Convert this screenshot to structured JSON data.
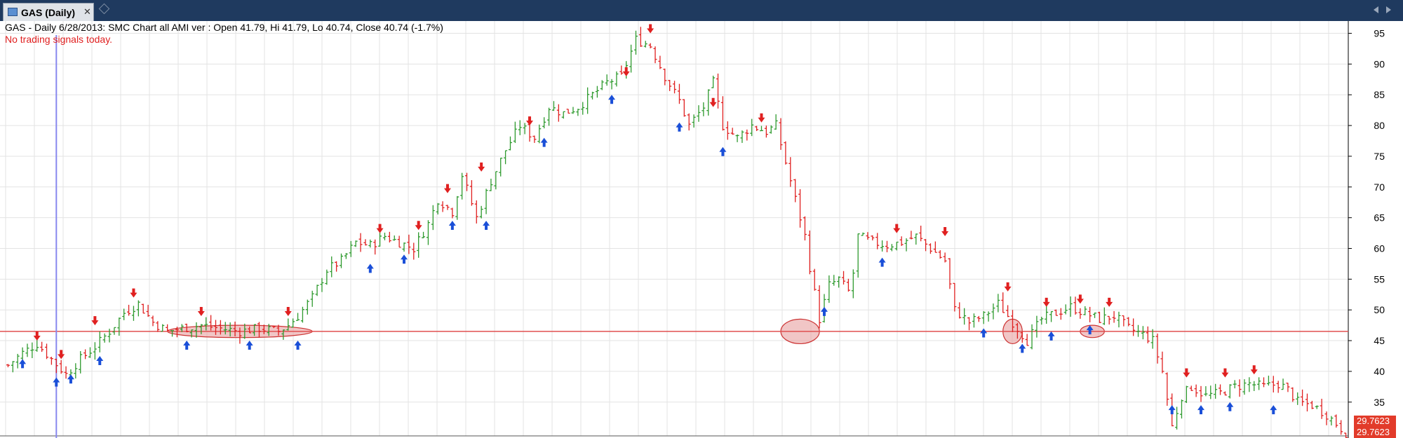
{
  "window": {
    "tab_label": "GAS (Daily)",
    "tab_close": "✕"
  },
  "header": {
    "info": "GAS - Daily 6/28/2013: SMC Chart all AMI ver : Open 41.79, Hi 41.79, Lo 40.74, Close 40.74 (-1.7%)",
    "signal_text": "No trading signals today."
  },
  "price_tags": [
    "29.7623",
    "29.7623"
  ],
  "chart_data": {
    "type": "bar",
    "style": "ohlc price bars, green up / red down",
    "y_axis_ticks": [
      35,
      40,
      45,
      50,
      55,
      60,
      65,
      70,
      75,
      80,
      85,
      90,
      95
    ],
    "ylim": [
      29.5,
      97
    ],
    "grid": true,
    "horizontal_level": 46.5,
    "last_price": 29.76,
    "colors": {
      "up_bar": "#2e9a2e",
      "down_bar": "#e02020",
      "buy_arrow": "#1a4fd8",
      "sell_arrow": "#e02020",
      "level_line": "#e05050",
      "cursor_line": "#8888ee",
      "ellipse_fill": "#e8a0a0"
    },
    "price_path": [
      [
        0,
        41
      ],
      [
        3,
        43
      ],
      [
        6,
        44.5
      ],
      [
        9,
        42
      ],
      [
        12,
        39.5
      ],
      [
        15,
        42
      ],
      [
        18,
        44
      ],
      [
        21,
        46.5
      ],
      [
        24,
        49.5
      ],
      [
        27,
        51
      ],
      [
        30,
        48
      ],
      [
        33,
        46.5
      ],
      [
        36,
        47
      ],
      [
        40,
        47.5
      ],
      [
        44,
        47
      ],
      [
        48,
        46.5
      ],
      [
        52,
        47
      ],
      [
        56,
        46.5
      ],
      [
        58,
        47.5
      ],
      [
        60,
        49
      ],
      [
        63,
        52
      ],
      [
        66,
        56.5
      ],
      [
        69,
        58
      ],
      [
        72,
        61
      ],
      [
        75,
        60.5
      ],
      [
        78,
        62
      ],
      [
        81,
        61
      ],
      [
        84,
        60
      ],
      [
        87,
        64
      ],
      [
        89,
        68
      ],
      [
        92,
        66
      ],
      [
        94,
        72
      ],
      [
        97,
        65
      ],
      [
        100,
        71
      ],
      [
        103,
        76
      ],
      [
        106,
        80
      ],
      [
        109,
        78
      ],
      [
        112,
        83
      ],
      [
        115,
        82
      ],
      [
        118,
        83
      ],
      [
        121,
        85
      ],
      [
        124,
        87
      ],
      [
        127,
        88
      ],
      [
        130,
        94
      ],
      [
        133,
        93
      ],
      [
        136,
        88
      ],
      [
        139,
        84
      ],
      [
        141,
        80
      ],
      [
        144,
        83
      ],
      [
        146,
        87
      ],
      [
        148,
        80
      ],
      [
        151,
        78
      ],
      [
        154,
        80
      ],
      [
        157,
        79
      ],
      [
        159,
        80
      ],
      [
        161,
        74
      ],
      [
        163,
        68
      ],
      [
        165,
        62
      ],
      [
        166,
        57
      ],
      [
        168,
        48.5
      ],
      [
        170,
        54
      ],
      [
        172,
        55
      ],
      [
        174,
        53
      ],
      [
        175,
        56
      ],
      [
        176,
        62
      ],
      [
        179,
        61
      ],
      [
        182,
        60.5
      ],
      [
        185,
        61
      ],
      [
        188,
        62
      ],
      [
        191,
        60
      ],
      [
        194,
        58
      ],
      [
        196,
        50
      ],
      [
        199,
        48
      ],
      [
        202,
        49
      ],
      [
        205,
        51
      ],
      [
        208,
        48
      ],
      [
        211,
        45
      ],
      [
        214,
        48.5
      ],
      [
        217,
        49.5
      ],
      [
        220,
        50.5
      ],
      [
        223,
        49.5
      ],
      [
        226,
        48.5
      ],
      [
        229,
        49
      ],
      [
        232,
        47
      ],
      [
        235,
        46
      ],
      [
        237,
        45
      ],
      [
        239,
        40
      ],
      [
        241,
        31
      ],
      [
        243,
        36
      ],
      [
        245,
        37.5
      ],
      [
        248,
        36
      ],
      [
        251,
        36.5
      ],
      [
        254,
        37.5
      ],
      [
        257,
        38
      ],
      [
        260,
        37.5
      ],
      [
        263,
        38
      ],
      [
        265,
        37
      ],
      [
        267,
        35
      ],
      [
        270,
        34.5
      ],
      [
        273,
        33
      ],
      [
        275,
        31.5
      ],
      [
        277,
        30
      ]
    ],
    "buy_signals": [
      {
        "bar": 3,
        "price": 42
      },
      {
        "bar": 10,
        "price": 39
      },
      {
        "bar": 13,
        "price": 39.5
      },
      {
        "bar": 19,
        "price": 42.5
      },
      {
        "bar": 37,
        "price": 45
      },
      {
        "bar": 50,
        "price": 45
      },
      {
        "bar": 60,
        "price": 45
      },
      {
        "bar": 75,
        "price": 57.5
      },
      {
        "bar": 82,
        "price": 59
      },
      {
        "bar": 92,
        "price": 64.5
      },
      {
        "bar": 99,
        "price": 64.5
      },
      {
        "bar": 111,
        "price": 78
      },
      {
        "bar": 125,
        "price": 85
      },
      {
        "bar": 139,
        "price": 80.5
      },
      {
        "bar": 148,
        "price": 76.5
      },
      {
        "bar": 169,
        "price": 50.5
      },
      {
        "bar": 181,
        "price": 58.5
      },
      {
        "bar": 202,
        "price": 47
      },
      {
        "bar": 210,
        "price": 44.5
      },
      {
        "bar": 216,
        "price": 46.5
      },
      {
        "bar": 224,
        "price": 47.5
      },
      {
        "bar": 241,
        "price": 34.5
      },
      {
        "bar": 247,
        "price": 34.5
      },
      {
        "bar": 253,
        "price": 35
      },
      {
        "bar": 262,
        "price": 34.5
      }
    ],
    "sell_signals": [
      {
        "bar": 6,
        "price": 45
      },
      {
        "bar": 11,
        "price": 42
      },
      {
        "bar": 18,
        "price": 47.5
      },
      {
        "bar": 26,
        "price": 52
      },
      {
        "bar": 40,
        "price": 49
      },
      {
        "bar": 58,
        "price": 49
      },
      {
        "bar": 77,
        "price": 62.5
      },
      {
        "bar": 85,
        "price": 63
      },
      {
        "bar": 91,
        "price": 69
      },
      {
        "bar": 98,
        "price": 72.5
      },
      {
        "bar": 108,
        "price": 80
      },
      {
        "bar": 128,
        "price": 88
      },
      {
        "bar": 133,
        "price": 95
      },
      {
        "bar": 146,
        "price": 83
      },
      {
        "bar": 156,
        "price": 80.5
      },
      {
        "bar": 184,
        "price": 62.5
      },
      {
        "bar": 194,
        "price": 62
      },
      {
        "bar": 207,
        "price": 53
      },
      {
        "bar": 215,
        "price": 50.5
      },
      {
        "bar": 222,
        "price": 51
      },
      {
        "bar": 228,
        "price": 50.5
      },
      {
        "bar": 244,
        "price": 39
      },
      {
        "bar": 252,
        "price": 39
      },
      {
        "bar": 258,
        "price": 39.5
      }
    ],
    "highlighted_zones": [
      {
        "bar_start": 33,
        "bar_end": 63,
        "price_low": 45.5,
        "price_high": 47.5
      },
      {
        "bar_start": 160,
        "bar_end": 168,
        "price_low": 44.5,
        "price_high": 48.5
      },
      {
        "bar_start": 206,
        "bar_end": 210,
        "price_low": 44.5,
        "price_high": 48.5
      },
      {
        "bar_start": 222,
        "bar_end": 227,
        "price_low": 45.5,
        "price_high": 47.5
      }
    ],
    "cursor_bar": 10
  }
}
